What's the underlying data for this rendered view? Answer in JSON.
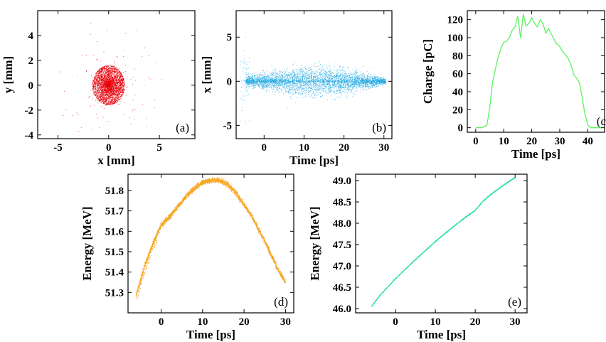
{
  "chart_data": [
    {
      "panel": "(a)",
      "type": "scatter",
      "xlabel": "x [mm]",
      "ylabel": "y [mm]",
      "xlim": [
        -7,
        8.5
      ],
      "ylim": [
        -4.3,
        6
      ],
      "xticks": [
        -5,
        0,
        5
      ],
      "yticks": [
        -4,
        -2,
        0,
        2,
        4
      ],
      "grid": false,
      "series": [
        {
          "color": "#e8000b",
          "points": [
            [
              0,
              0
            ],
            [
              0.4,
              0.3
            ],
            [
              -0.5,
              0.2
            ],
            [
              0.2,
              -0.6
            ],
            [
              -0.3,
              -0.4
            ],
            [
              0.8,
              0.5
            ],
            [
              -0.9,
              -0.3
            ],
            [
              1.1,
              -0.8
            ],
            [
              -1.0,
              0.9
            ],
            [
              1.3,
              0.6
            ],
            [
              -1.2,
              -1.0
            ],
            [
              0.6,
              1.2
            ],
            [
              -0.4,
              1.3
            ],
            [
              0.5,
              -1.4
            ],
            [
              1.5,
              0.1
            ],
            [
              -1.6,
              0.2
            ],
            [
              0.1,
              1.6
            ],
            [
              -0.2,
              -1.6
            ],
            [
              1.6,
              -1.4
            ],
            [
              -2.2,
              1.1
            ],
            [
              2.4,
              -1.2
            ],
            [
              3.9,
              0.6
            ],
            [
              2.1,
              -2.6
            ],
            [
              -2.7,
              -3.4
            ],
            [
              4.5,
              -1.8
            ],
            [
              3.3,
              2.3
            ],
            [
              -3.1,
              0.8
            ],
            [
              -1.8,
              4.1
            ]
          ]
        }
      ],
      "point_count": 3000,
      "radius_core_mm": 1.6
    },
    {
      "panel": "(b)",
      "type": "scatter",
      "xlabel": "Time [ps]",
      "ylabel": "x [mm]",
      "xlim": [
        -7,
        32
      ],
      "ylim": [
        -6.5,
        8
      ],
      "xticks": [
        0,
        10,
        20,
        30
      ],
      "yticks": [
        -5,
        0,
        5
      ],
      "grid": false,
      "series": [
        {
          "color": "#29abe2",
          "points": [
            [
              -6,
              0
            ],
            [
              -5,
              0.9
            ],
            [
              -5,
              -1.2
            ],
            [
              -4,
              1.5
            ],
            [
              0,
              -0.6
            ],
            [
              5,
              1.0
            ],
            [
              10,
              -1.3
            ],
            [
              14,
              1.4
            ],
            [
              20,
              -1.0
            ],
            [
              25,
              0.7
            ],
            [
              29,
              -0.3
            ]
          ]
        }
      ],
      "point_count": 5000,
      "envelope": {
        "x": [
          -4,
          0,
          5,
          10,
          15,
          20,
          25,
          30
        ],
        "halfwidth_mm": [
          0.5,
          0.8,
          1.1,
          1.4,
          1.5,
          1.2,
          0.8,
          0.3
        ]
      }
    },
    {
      "panel": "(c",
      "type": "line",
      "xlabel": "Time [ps]",
      "ylabel": "Charge [pC]",
      "xlim": [
        -3,
        46
      ],
      "ylim": [
        -5,
        130
      ],
      "xticks": [
        0,
        10,
        20,
        30,
        40
      ],
      "yticks": [
        0,
        20,
        40,
        60,
        80,
        100,
        120
      ],
      "grid": false,
      "series": [
        {
          "color": "#5cf25c",
          "x": [
            0,
            2,
            3,
            4,
            5,
            6,
            7,
            8,
            9,
            10,
            11,
            12,
            13,
            14,
            15,
            16,
            17,
            18,
            19,
            20,
            21,
            22,
            23,
            24,
            25,
            26,
            27,
            28,
            29,
            30,
            31,
            32,
            33,
            34,
            35,
            36,
            37,
            38,
            39,
            40,
            41,
            42,
            43,
            45
          ],
          "values": [
            0,
            0,
            1,
            3,
            22,
            50,
            65,
            78,
            88,
            95,
            96,
            100,
            108,
            112,
            124,
            100,
            126,
            113,
            116,
            122,
            116,
            112,
            120,
            116,
            105,
            110,
            104,
            98,
            93,
            90,
            85,
            81,
            77,
            70,
            59,
            55,
            50,
            34,
            15,
            3,
            0,
            0,
            0,
            0
          ]
        }
      ]
    },
    {
      "panel": "(d)",
      "type": "scatter",
      "xlabel": "Time [ps]",
      "ylabel": "Energy [MeV]",
      "xlim": [
        -8,
        32
      ],
      "ylim": [
        51.2,
        51.88
      ],
      "xticks": [
        0,
        10,
        20,
        30
      ],
      "yticks": [
        51.3,
        51.4,
        51.5,
        51.6,
        51.7,
        51.8
      ],
      "grid": false,
      "series": [
        {
          "color": "#f5a623",
          "x": [
            -6,
            -4,
            -2,
            0,
            2,
            4,
            6,
            8,
            10,
            12,
            13,
            14,
            16,
            18,
            20,
            22,
            24,
            26,
            28,
            30
          ],
          "values": [
            51.29,
            51.43,
            51.54,
            51.63,
            51.67,
            51.72,
            51.77,
            51.81,
            51.84,
            51.85,
            51.85,
            51.85,
            51.83,
            51.79,
            51.73,
            51.67,
            51.59,
            51.51,
            51.42,
            51.35
          ]
        }
      ],
      "band_halfwidth_MeV": 0.012
    },
    {
      "panel": "(e)",
      "type": "scatter",
      "xlabel": "Time [ps]",
      "ylabel": "Energy [MeV]",
      "xlim": [
        -10,
        33
      ],
      "ylim": [
        45.9,
        49.15
      ],
      "xticks": [
        0,
        10,
        20,
        30
      ],
      "yticks": [
        46.0,
        46.5,
        47.0,
        47.5,
        48.0,
        48.5,
        49.0
      ],
      "grid": false,
      "series": [
        {
          "color": "#2fe0a8",
          "x": [
            -6,
            -4,
            -2,
            0,
            2,
            4,
            6,
            8,
            10,
            12,
            14,
            16,
            18,
            20,
            22,
            24,
            26,
            28,
            30
          ],
          "values": [
            46.05,
            46.3,
            46.5,
            46.7,
            46.88,
            47.06,
            47.23,
            47.4,
            47.57,
            47.73,
            47.88,
            48.03,
            48.17,
            48.3,
            48.52,
            48.68,
            48.82,
            48.95,
            49.07
          ]
        }
      ]
    }
  ]
}
